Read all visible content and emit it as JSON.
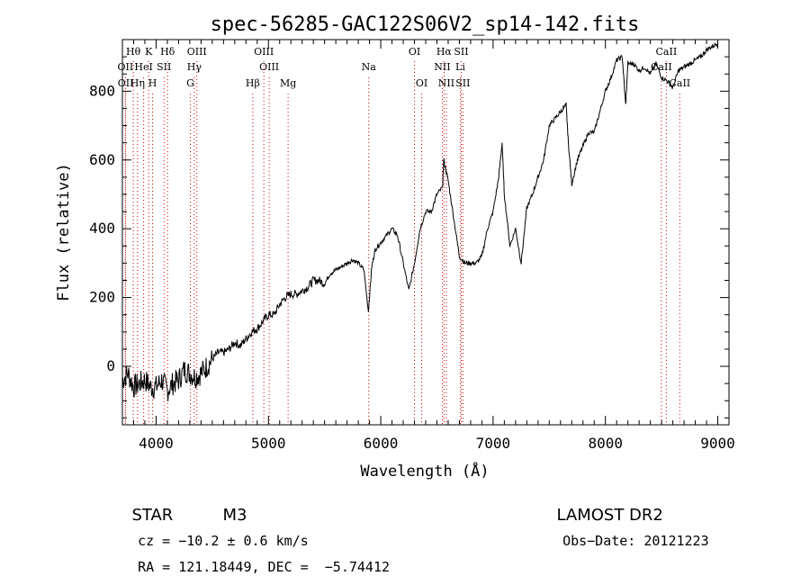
{
  "chart_data": {
    "type": "line",
    "title": "spec-56285-GAC122S06V2_sp14-142.fits",
    "xlabel": "Wavelength (Å)",
    "ylabel": "Flux (relative)",
    "xlim": [
      3700,
      9100
    ],
    "ylim": [
      -170,
      950
    ],
    "xticks": [
      4000,
      5000,
      6000,
      7000,
      8000,
      9000
    ],
    "yticks": [
      0,
      200,
      400,
      600,
      800
    ],
    "grid": false,
    "series": [
      {
        "x": [
          3700,
          3750,
          3800,
          3850,
          3900,
          3950,
          4000,
          4050,
          4100,
          4150,
          4200,
          4250,
          4300,
          4350,
          4400,
          4450,
          4500,
          4550,
          4600,
          4650,
          4700,
          4750,
          4800,
          4850,
          4900,
          4950,
          5000,
          5050,
          5100,
          5150,
          5200,
          5250,
          5300,
          5350,
          5400,
          5450,
          5500,
          5550,
          5600,
          5650,
          5700,
          5750,
          5800,
          5850,
          5890,
          5920,
          5950,
          6000,
          6050,
          6100,
          6150,
          6200,
          6250,
          6300,
          6350,
          6400,
          6450,
          6500,
          6550,
          6560,
          6600,
          6650,
          6700,
          6750,
          6800,
          6850,
          6900,
          6950,
          7000,
          7050,
          7080,
          7100,
          7150,
          7200,
          7250,
          7300,
          7350,
          7400,
          7450,
          7500,
          7550,
          7600,
          7650,
          7670,
          7700,
          7750,
          7800,
          7850,
          7900,
          7950,
          8000,
          8050,
          8100,
          8150,
          8180,
          8200,
          8250,
          8300,
          8350,
          8400,
          8450,
          8500,
          8550,
          8600,
          8650,
          8700,
          8750,
          8800,
          8850,
          8900,
          8950,
          9000
        ],
        "values": [
          -40,
          -20,
          -60,
          -50,
          -40,
          -60,
          -60,
          -40,
          -70,
          -50,
          -40,
          -10,
          -20,
          -30,
          -20,
          0,
          20,
          40,
          40,
          50,
          70,
          60,
          80,
          100,
          110,
          130,
          150,
          150,
          180,
          200,
          210,
          210,
          220,
          230,
          250,
          250,
          240,
          270,
          280,
          290,
          300,
          310,
          300,
          280,
          160,
          290,
          340,
          360,
          380,
          400,
          380,
          300,
          220,
          300,
          400,
          450,
          450,
          500,
          520,
          600,
          540,
          430,
          320,
          300,
          300,
          300,
          320,
          400,
          450,
          550,
          650,
          500,
          350,
          400,
          300,
          460,
          500,
          550,
          600,
          700,
          720,
          740,
          760,
          650,
          530,
          600,
          640,
          680,
          680,
          740,
          800,
          840,
          890,
          900,
          760,
          880,
          880,
          860,
          870,
          850,
          880,
          840,
          830,
          810,
          860,
          870,
          880,
          890,
          900,
          920,
          930,
          940
        ]
      }
    ],
    "line_labels": [
      {
        "text": "Hθ",
        "row": 1,
        "x": 3797
      },
      {
        "text": "K",
        "row": 1,
        "x": 3934
      },
      {
        "text": "Hδ",
        "row": 1,
        "x": 4102
      },
      {
        "text": "OIII",
        "row": 1,
        "x": 4363
      },
      {
        "text": "OIII",
        "row": 1,
        "x": 4959
      },
      {
        "text": "OI",
        "row": 1,
        "x": 6300
      },
      {
        "text": "Hα",
        "row": 1,
        "x": 6563
      },
      {
        "text": "SII",
        "row": 1,
        "x": 6716
      },
      {
        "text": "CaII",
        "row": 1,
        "x": 8542
      },
      {
        "text": "OII",
        "row": 2,
        "x": 3727
      },
      {
        "text": "HeI",
        "row": 2,
        "x": 3889
      },
      {
        "text": "SII",
        "row": 2,
        "x": 4070
      },
      {
        "text": "Hγ",
        "row": 2,
        "x": 4340
      },
      {
        "text": "OIII",
        "row": 2,
        "x": 5007
      },
      {
        "text": "Na",
        "row": 2,
        "x": 5893
      },
      {
        "text": "NII",
        "row": 2,
        "x": 6548
      },
      {
        "text": "Li",
        "row": 2,
        "x": 6708
      },
      {
        "text": "CaII",
        "row": 2,
        "x": 8498
      },
      {
        "text": "OII",
        "row": 3,
        "x": 3729
      },
      {
        "text": "Hη",
        "row": 3,
        "x": 3835
      },
      {
        "text": "H",
        "row": 3,
        "x": 3969
      },
      {
        "text": "G",
        "row": 3,
        "x": 4305
      },
      {
        "text": "Hβ",
        "row": 3,
        "x": 4861
      },
      {
        "text": "Mg",
        "row": 3,
        "x": 5175
      },
      {
        "text": "OI",
        "row": 3,
        "x": 6364
      },
      {
        "text": "NII",
        "row": 3,
        "x": 6584
      },
      {
        "text": "SII",
        "row": 3,
        "x": 6731
      },
      {
        "text": "CaII",
        "row": 3,
        "x": 8662
      }
    ],
    "line_color": "#cc0000",
    "series_color": "#000000"
  },
  "info": {
    "object_class": "STAR",
    "subclass": "M3",
    "survey": "LAMOST DR2",
    "redshift": "cz = −10.2 ± 0.6 km/s",
    "obs_date": "Obs−Date: 20121223",
    "coords": "RA = 121.18449, DEC =  −5.74412"
  }
}
